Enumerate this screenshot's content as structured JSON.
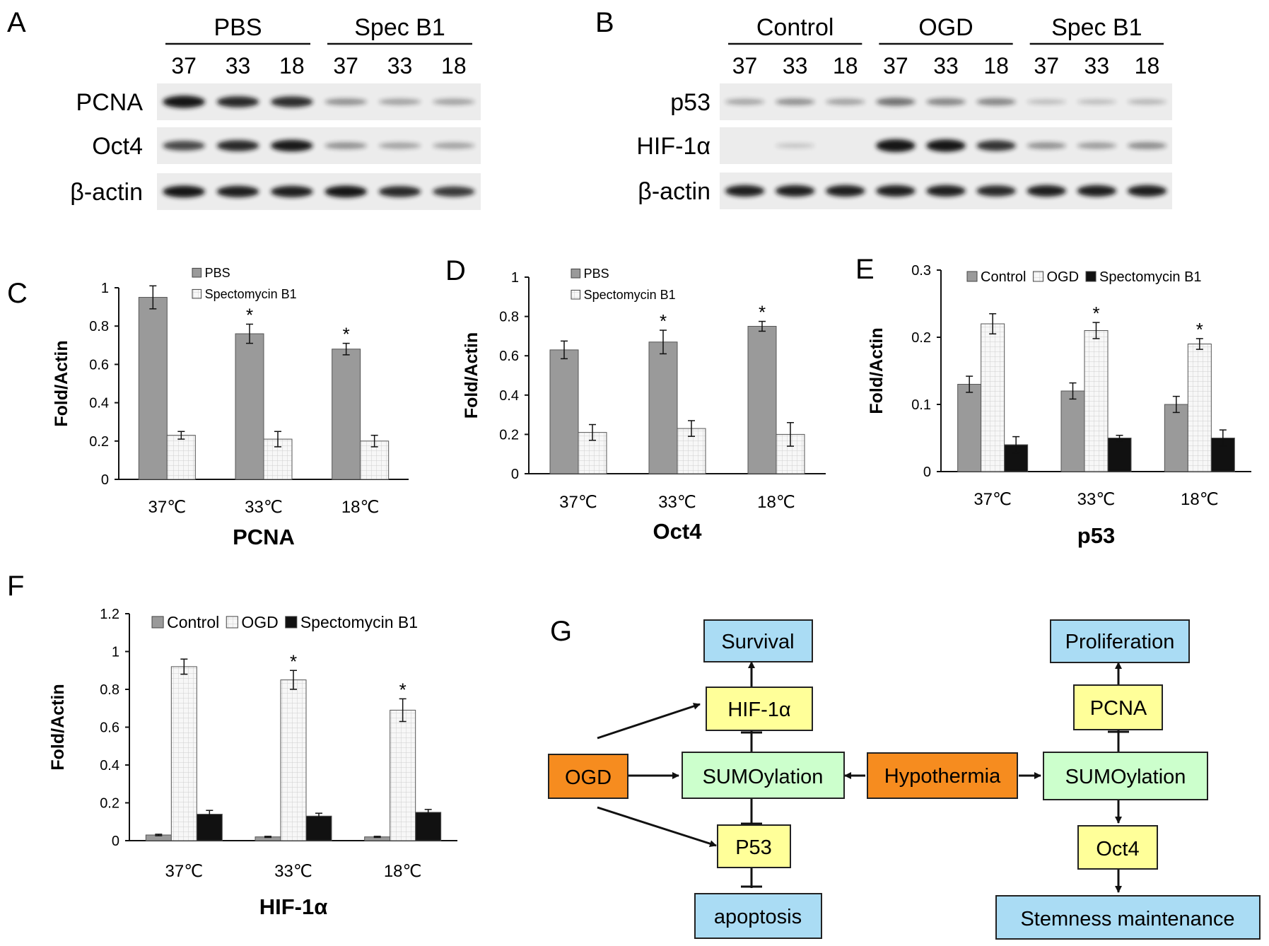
{
  "panels": {
    "A": {
      "letter": "A",
      "groups": [
        {
          "label": "PBS",
          "lanes": [
            "37",
            "33",
            "18"
          ]
        },
        {
          "label": "Spec B1",
          "lanes": [
            "37",
            "33",
            "18"
          ]
        }
      ],
      "rows": [
        {
          "label": "PCNA",
          "bands": [
            0.95,
            0.8,
            0.78,
            0.3,
            0.22,
            0.22
          ]
        },
        {
          "label": "Oct4",
          "bands": [
            0.65,
            0.8,
            0.88,
            0.3,
            0.22,
            0.22
          ]
        },
        {
          "label": "β-actin",
          "bands": [
            0.9,
            0.85,
            0.85,
            0.9,
            0.8,
            0.72
          ]
        }
      ]
    },
    "B": {
      "letter": "B",
      "groups": [
        {
          "label": "Control",
          "lanes": [
            "37",
            "33",
            "18"
          ]
        },
        {
          "label": "OGD",
          "lanes": [
            "37",
            "33",
            "18"
          ]
        },
        {
          "label": "Spec B1",
          "lanes": [
            "37",
            "33",
            "18"
          ]
        }
      ],
      "rows": [
        {
          "label": "p53",
          "bands": [
            0.2,
            0.3,
            0.22,
            0.45,
            0.35,
            0.35,
            0.08,
            0.08,
            0.12
          ]
        },
        {
          "label": "HIF-1α",
          "bands": [
            0.0,
            0.05,
            0.0,
            1.0,
            0.95,
            0.75,
            0.3,
            0.25,
            0.32
          ]
        },
        {
          "label": "β-actin",
          "bands": [
            0.85,
            0.85,
            0.85,
            0.85,
            0.85,
            0.8,
            0.85,
            0.85,
            0.85
          ]
        }
      ]
    },
    "G": {
      "letter": "G",
      "nodes": {
        "survival": "Survival",
        "hif": "HIF-1α",
        "sumo_left": "SUMOylation",
        "ogd": "OGD",
        "p53": "P53",
        "apoptosis": "apoptosis",
        "hypothermia": "Hypothermia",
        "proliferation": "Proliferation",
        "pcna": "PCNA",
        "sumo_right": "SUMOylation",
        "oct4": "Oct4",
        "stemness": "Stemness maintenance"
      },
      "colors": {
        "outcome": "#aadcf4",
        "protein": "#ffff99",
        "sumo": "#ccffcc",
        "stimulus": "#f68c1f"
      }
    }
  },
  "chart_data": [
    {
      "panel": "C",
      "type": "bar",
      "categories": [
        "37℃",
        "33℃",
        "18℃"
      ],
      "series": [
        {
          "name": "PBS",
          "values": [
            0.95,
            0.76,
            0.68
          ],
          "errors": [
            0.06,
            0.05,
            0.03
          ],
          "significant": [
            false,
            true,
            true
          ]
        },
        {
          "name": "Spectomycin B1",
          "values": [
            0.23,
            0.21,
            0.2
          ],
          "errors": [
            0.02,
            0.04,
            0.03
          ],
          "significant": [
            false,
            false,
            false
          ]
        }
      ],
      "title": "PCNA",
      "ylabel": "Fold/Actin",
      "ylim": [
        0,
        1
      ],
      "yticks": [
        "0",
        "0.2",
        "0.4",
        "0.6",
        "0.8",
        "1"
      ],
      "legend_position": "top"
    },
    {
      "panel": "D",
      "type": "bar",
      "categories": [
        "37℃",
        "33℃",
        "18℃"
      ],
      "series": [
        {
          "name": "PBS",
          "values": [
            0.63,
            0.67,
            0.75
          ],
          "errors": [
            0.045,
            0.06,
            0.025
          ],
          "significant": [
            false,
            true,
            true
          ]
        },
        {
          "name": "Spectomycin B1",
          "values": [
            0.21,
            0.23,
            0.2
          ],
          "errors": [
            0.04,
            0.04,
            0.06
          ],
          "significant": [
            false,
            false,
            false
          ]
        }
      ],
      "title": "Oct4",
      "ylabel": "Fold/Actin",
      "ylim": [
        0,
        1
      ],
      "yticks": [
        "0",
        "0.2",
        "0.4",
        "0.6",
        "0.8",
        "1"
      ],
      "legend_position": "top"
    },
    {
      "panel": "E",
      "type": "bar",
      "categories": [
        "37℃",
        "33℃",
        "18℃"
      ],
      "series": [
        {
          "name": "Control",
          "values": [
            0.13,
            0.12,
            0.1
          ],
          "errors": [
            0.012,
            0.012,
            0.012
          ],
          "significant": [
            false,
            false,
            false
          ]
        },
        {
          "name": "OGD",
          "values": [
            0.22,
            0.21,
            0.19
          ],
          "errors": [
            0.015,
            0.012,
            0.008
          ],
          "significant": [
            false,
            true,
            true
          ]
        },
        {
          "name": "Spectomycin B1",
          "values": [
            0.04,
            0.05,
            0.05
          ],
          "errors": [
            0.012,
            0.004,
            0.012
          ],
          "significant": [
            false,
            false,
            false
          ]
        }
      ],
      "title": "p53",
      "ylabel": "Fold/Actin",
      "ylim": [
        0,
        0.3
      ],
      "yticks": [
        "0",
        "0.1",
        "0.2",
        "0.3"
      ],
      "legend_position": "top"
    },
    {
      "panel": "F",
      "type": "bar",
      "categories": [
        "37℃",
        "33℃",
        "18℃"
      ],
      "series": [
        {
          "name": "Control",
          "values": [
            0.03,
            0.02,
            0.02
          ],
          "errors": [
            0.004,
            0.003,
            0.003
          ],
          "significant": [
            false,
            false,
            false
          ]
        },
        {
          "name": "OGD",
          "values": [
            0.92,
            0.85,
            0.69
          ],
          "errors": [
            0.04,
            0.05,
            0.06
          ],
          "significant": [
            false,
            true,
            true
          ]
        },
        {
          "name": "Spectomycin B1",
          "values": [
            0.14,
            0.13,
            0.15
          ],
          "errors": [
            0.02,
            0.015,
            0.015
          ],
          "significant": [
            false,
            false,
            false
          ]
        }
      ],
      "title": "HIF-1α",
      "ylabel": "Fold/Actin",
      "ylim": [
        0,
        1.2
      ],
      "yticks": [
        "0",
        "0.2",
        "0.4",
        "0.6",
        "0.8",
        "1",
        "1.2"
      ],
      "legend_position": "top"
    }
  ],
  "letters": {
    "C": "C",
    "D": "D",
    "E": "E",
    "F": "F"
  },
  "significance_marker": "*",
  "colors": {
    "gray_bar": "#9a9a9a",
    "white_bar": "#f7f7f7",
    "black_bar": "#111111",
    "band": "#141414",
    "membrane": "#ececec"
  }
}
